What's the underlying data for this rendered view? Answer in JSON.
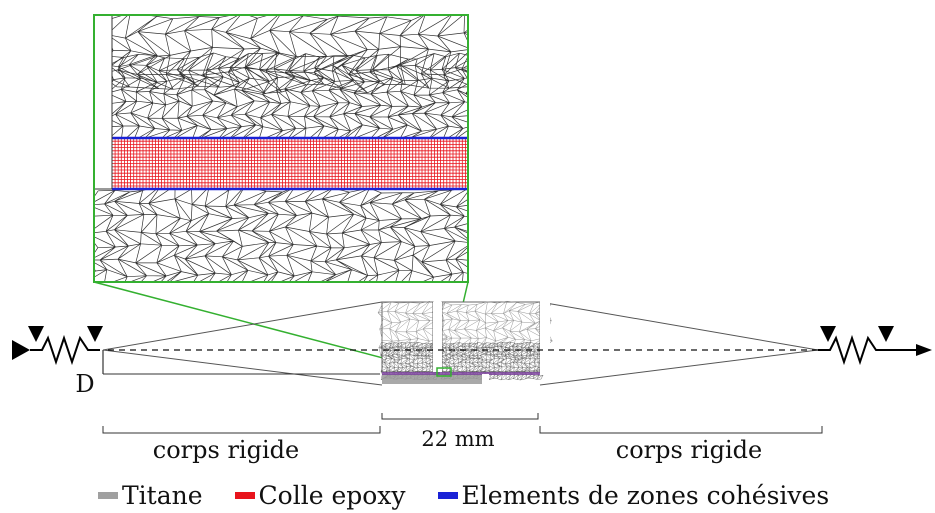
{
  "labels": {
    "displacement": "D",
    "left_region": "corps rigide",
    "right_region": "corps rigide",
    "specimen_length": "22 mm"
  },
  "legend": [
    {
      "label": "Titane",
      "color": "#a0a0a0"
    },
    {
      "label": "Colle epoxy",
      "color": "#e8141c"
    },
    {
      "label": "Elements de zones cohésives",
      "color": "#1a22d6"
    }
  ],
  "colors": {
    "mesh_lines": "#333333",
    "adhesive_grid": "#e8141c",
    "cohesive_lines": "#1a22d6",
    "zoom_frame": "#34b030",
    "axis": "#111111"
  }
}
